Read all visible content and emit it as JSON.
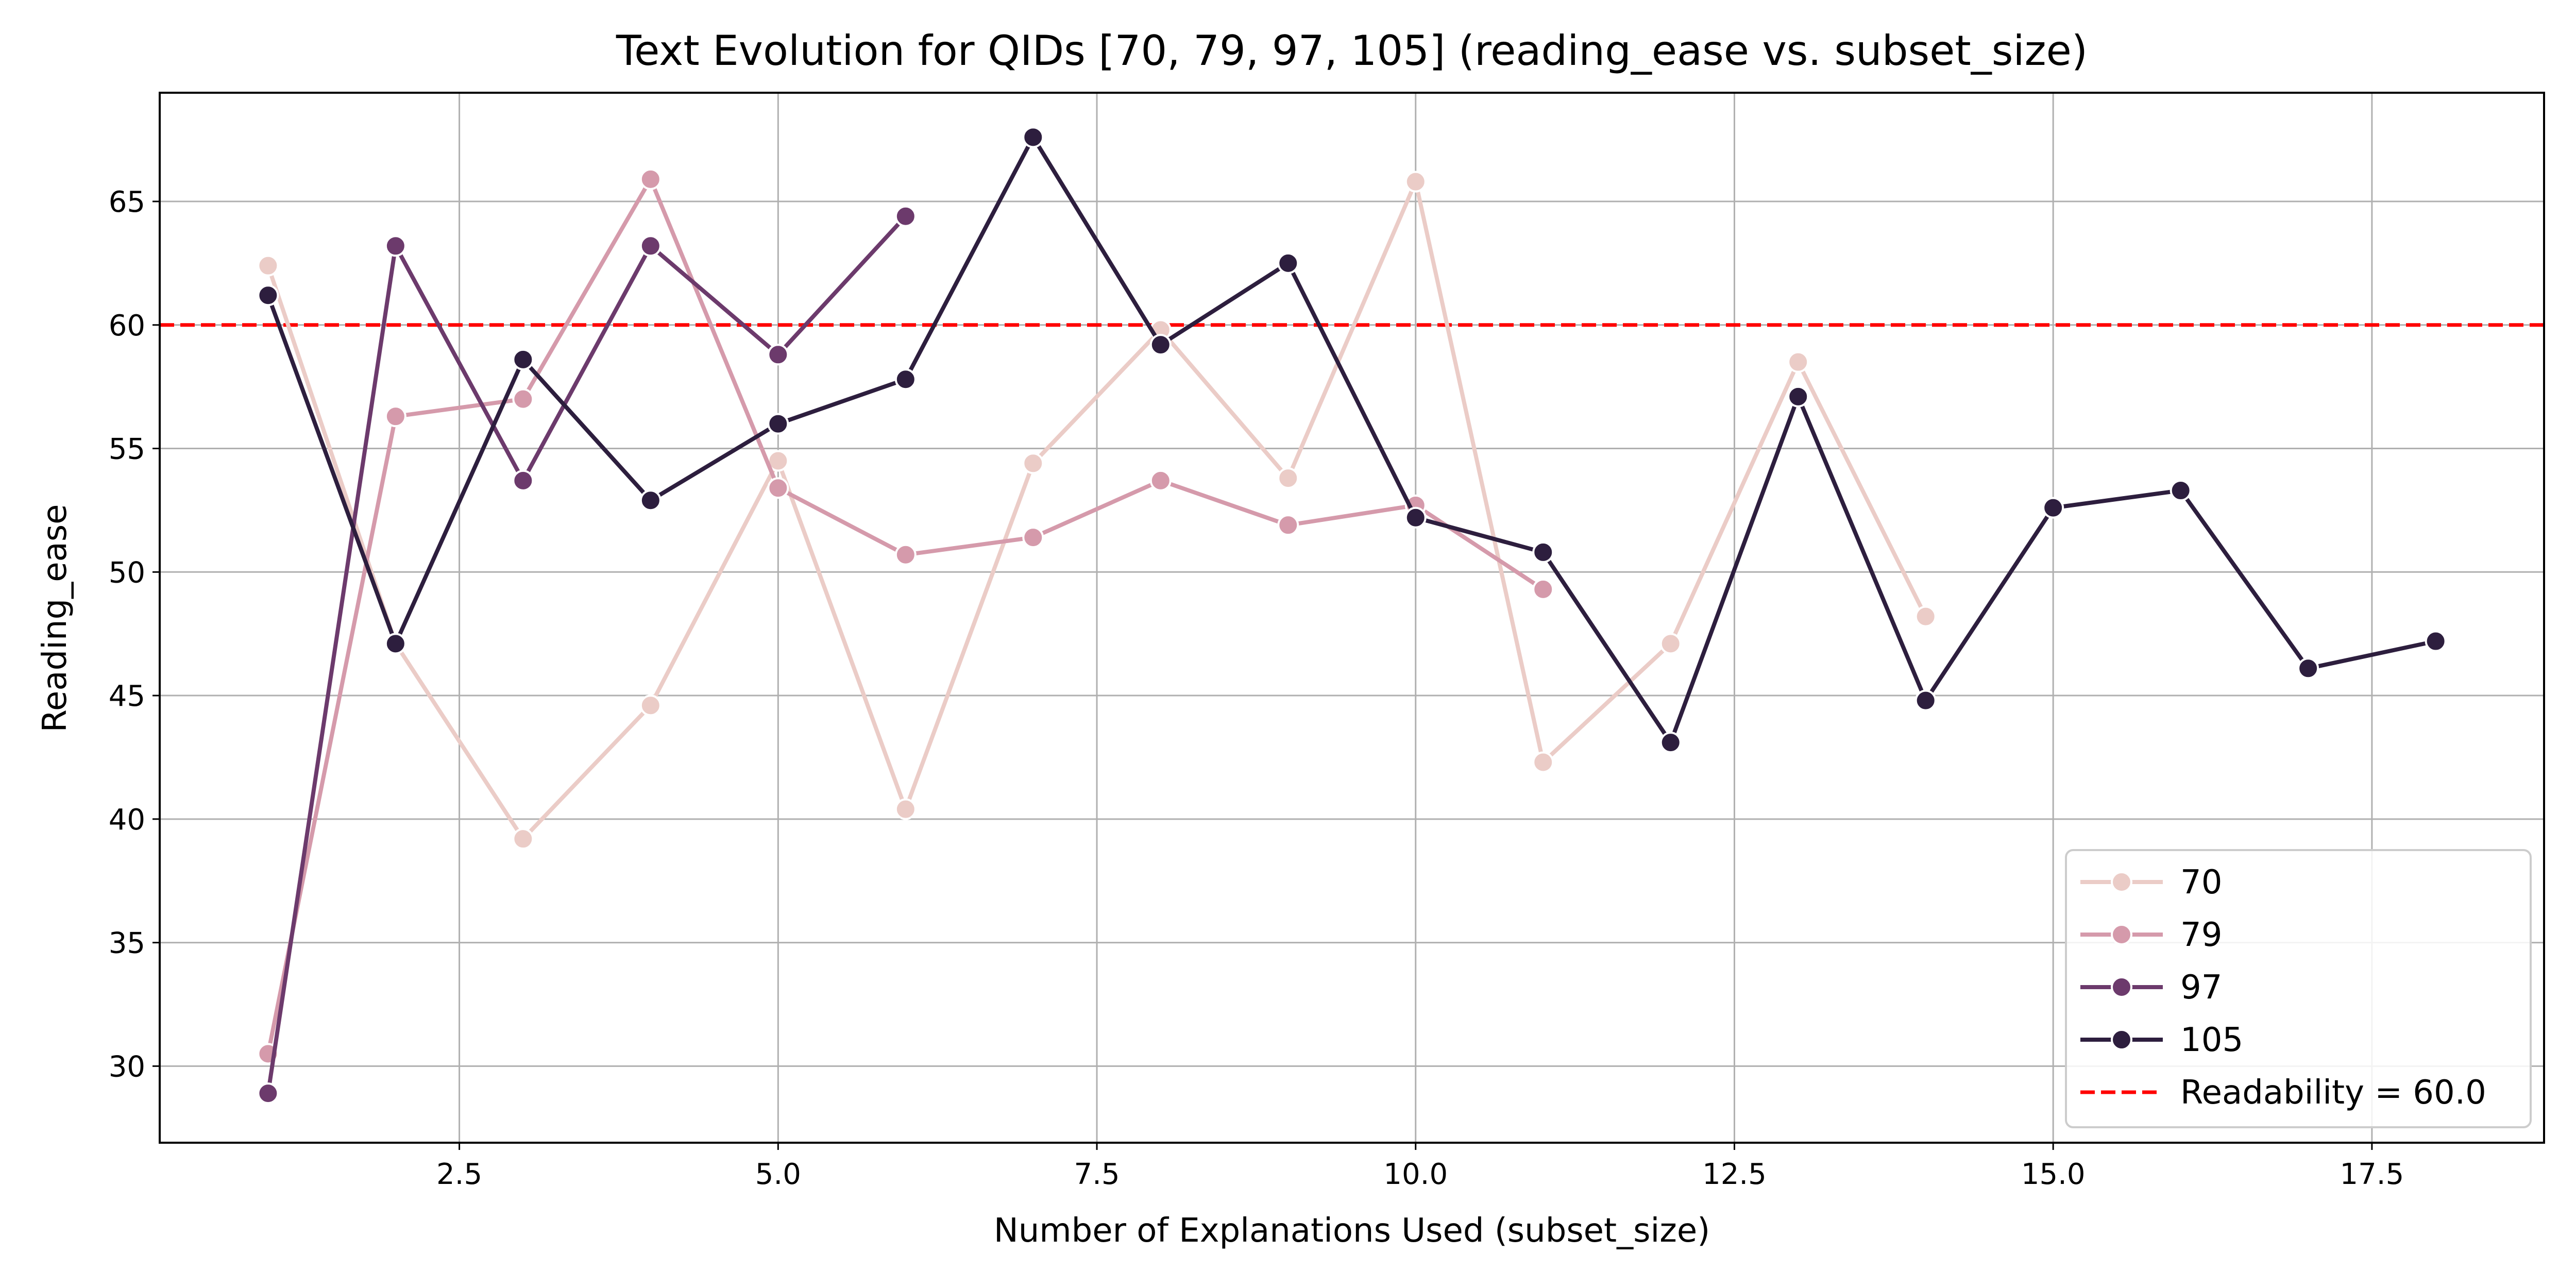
{
  "chart_data": {
    "type": "line",
    "title": "Text Evolution for QIDs [70, 79, 97, 105] (reading_ease vs. subset_size)",
    "xlabel": "Number of Explanations Used (subset_size)",
    "ylabel": "Reading_ease",
    "xlim": [
      0.15,
      18.85
    ],
    "ylim": [
      26.9,
      69.4
    ],
    "xticks": [
      2.5,
      5.0,
      7.5,
      10.0,
      12.5,
      15.0,
      17.5
    ],
    "xtick_labels": [
      "2.5",
      "5.0",
      "7.5",
      "10.0",
      "12.5",
      "15.0",
      "17.5"
    ],
    "yticks": [
      30,
      35,
      40,
      45,
      50,
      55,
      60,
      65
    ],
    "ytick_labels": [
      "30",
      "35",
      "40",
      "45",
      "50",
      "55",
      "60",
      "65"
    ],
    "grid": true,
    "legend_position": "bottom-right",
    "series": [
      {
        "name": "70",
        "color": "#ebccc7",
        "x": [
          1,
          2,
          3,
          4,
          5,
          6,
          7,
          8,
          9,
          10,
          11,
          12,
          13,
          14
        ],
        "y": [
          62.4,
          47.1,
          39.2,
          44.6,
          54.5,
          40.4,
          54.4,
          59.8,
          53.8,
          65.8,
          42.3,
          47.1,
          58.5,
          48.2
        ]
      },
      {
        "name": "79",
        "color": "#d59aab",
        "x": [
          1,
          2,
          3,
          4,
          5,
          6,
          7,
          8,
          9,
          10,
          11
        ],
        "y": [
          30.5,
          56.3,
          57.0,
          65.9,
          53.4,
          50.7,
          51.4,
          53.7,
          51.9,
          52.7,
          49.3
        ]
      },
      {
        "name": "97",
        "color": "#6c3a6c",
        "x": [
          1,
          2,
          3,
          4,
          5,
          6
        ],
        "y": [
          28.9,
          63.2,
          53.7,
          63.2,
          58.8,
          64.4
        ]
      },
      {
        "name": "105",
        "color": "#2d1e3e",
        "x": [
          1,
          2,
          3,
          4,
          5,
          6,
          7,
          8,
          9,
          10,
          11,
          12,
          13,
          14,
          15,
          16,
          17,
          18
        ],
        "y": [
          61.2,
          47.1,
          58.6,
          52.9,
          56.0,
          57.8,
          67.6,
          59.2,
          62.5,
          52.2,
          50.8,
          43.1,
          57.1,
          44.8,
          52.6,
          53.3,
          46.1,
          47.2
        ]
      }
    ],
    "reference_line": {
      "label": "Readability = 60.0",
      "y": 60.0,
      "color": "#ff0000",
      "style": "dashed"
    }
  }
}
